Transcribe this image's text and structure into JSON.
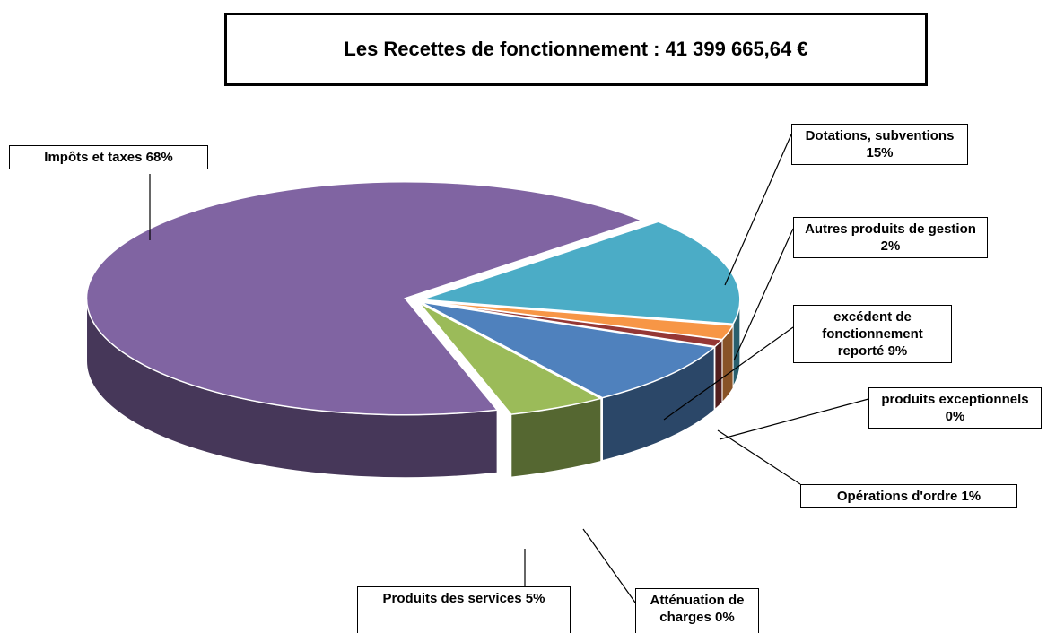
{
  "chart_data": {
    "type": "pie",
    "title": "Les Recettes de fonctionnement : 41 399 665,64 €",
    "categories": [
      "Dotations, subventions",
      "Autres produits de gestion",
      "Opérations d'ordre",
      "produits exceptionnels",
      "excédent de fonctionnement reporté",
      "Atténuation de charges",
      "Produits des services",
      "Impôts et taxes"
    ],
    "values": [
      15,
      2,
      1,
      0,
      9,
      0,
      5,
      68
    ],
    "value_labels": [
      "15%",
      "2%",
      "1%",
      "0%",
      "9%",
      "0%",
      "5%",
      "68%"
    ],
    "colors": [
      "#4bacc6",
      "#f79646",
      "#953735",
      "#7f2a28",
      "#4f81bd",
      "#c0504d",
      "#9bbb59",
      "#8064a2"
    ]
  }
}
